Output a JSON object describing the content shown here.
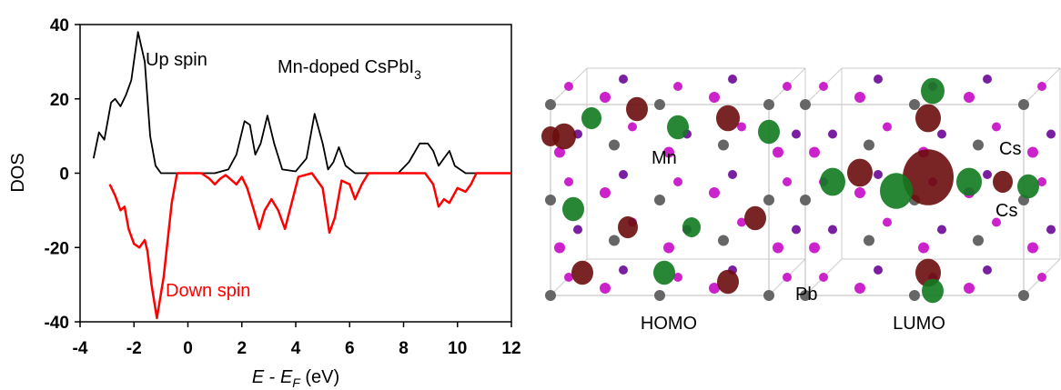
{
  "chart_data": {
    "type": "line",
    "title": [
      "Mn-doped CsPbI",
      "3"
    ],
    "xlabel": [
      "E",
      " - ",
      "E",
      "F",
      " (eV)"
    ],
    "ylabel": "DOS",
    "xlim": [
      -4,
      12
    ],
    "xticks": [
      -4,
      -2,
      0,
      2,
      4,
      6,
      8,
      10,
      12
    ],
    "ylim": [
      -40,
      40
    ],
    "yticks": [
      -40,
      -20,
      0,
      20,
      40
    ],
    "annotations": [
      "Up spin",
      "Down spin"
    ],
    "series": [
      {
        "name": "Up spin",
        "color": "#000000",
        "x": [
          -3.5,
          -3.3,
          -3.1,
          -2.85,
          -2.7,
          -2.5,
          -2.3,
          -2.1,
          -1.85,
          -1.6,
          -1.4,
          -1.2,
          -1,
          0,
          1,
          1.5,
          1.8,
          2.1,
          2.3,
          2.5,
          2.7,
          2.95,
          3.2,
          3.5,
          4,
          4.4,
          4.7,
          5.0,
          5.2,
          5.4,
          5.6,
          5.85,
          6.2,
          7.8,
          8.2,
          8.6,
          8.9,
          9.1,
          9.3,
          9.5,
          9.7,
          9.9,
          10.3,
          12
        ],
        "values": [
          4,
          11,
          9,
          19,
          20,
          18,
          21,
          25,
          38,
          30,
          10,
          2,
          0,
          0,
          0,
          1,
          5,
          14,
          13,
          5,
          8,
          15.5,
          8,
          1,
          0.5,
          4,
          16,
          8,
          1,
          3,
          7,
          2,
          0,
          0,
          3,
          8,
          8,
          6,
          2,
          4,
          6,
          2,
          0,
          0
        ]
      },
      {
        "name": "Down spin",
        "color": "#ff0000",
        "x": [
          -2.9,
          -2.7,
          -2.5,
          -2.35,
          -2.2,
          -2.0,
          -1.8,
          -1.6,
          -1.5,
          -1.35,
          -1.15,
          -0.9,
          -0.6,
          -0.4,
          0.5,
          0.8,
          1.0,
          1.2,
          1.4,
          1.8,
          2.0,
          2.2,
          2.45,
          2.65,
          2.85,
          3.1,
          3.35,
          3.6,
          3.85,
          4.1,
          4.6,
          5.0,
          5.25,
          5.45,
          5.7,
          6.0,
          6.2,
          6.45,
          6.7,
          8.8,
          9.1,
          9.3,
          9.5,
          9.7,
          10.0,
          10.3,
          10.5,
          10.7,
          12
        ],
        "values": [
          -3,
          -6,
          -10,
          -9,
          -15,
          -19,
          -20,
          -18,
          -21,
          -30,
          -39,
          -28,
          -8,
          0,
          0,
          -1.5,
          -3,
          -1.5,
          -0.5,
          -3,
          -1,
          -4,
          -10,
          -15,
          -10,
          -7,
          -10,
          -15,
          -8,
          -1,
          0,
          -4,
          -16,
          -12,
          -2,
          -3,
          -7,
          -3,
          0,
          0,
          -3,
          -9,
          -7,
          -8,
          -4,
          -5,
          -3,
          0,
          0
        ]
      }
    ]
  },
  "orbitals": {
    "labels": [
      "Mn",
      "Cs",
      "Cs",
      "Pb"
    ],
    "captions": [
      "HOMO",
      "LUMO"
    ]
  }
}
